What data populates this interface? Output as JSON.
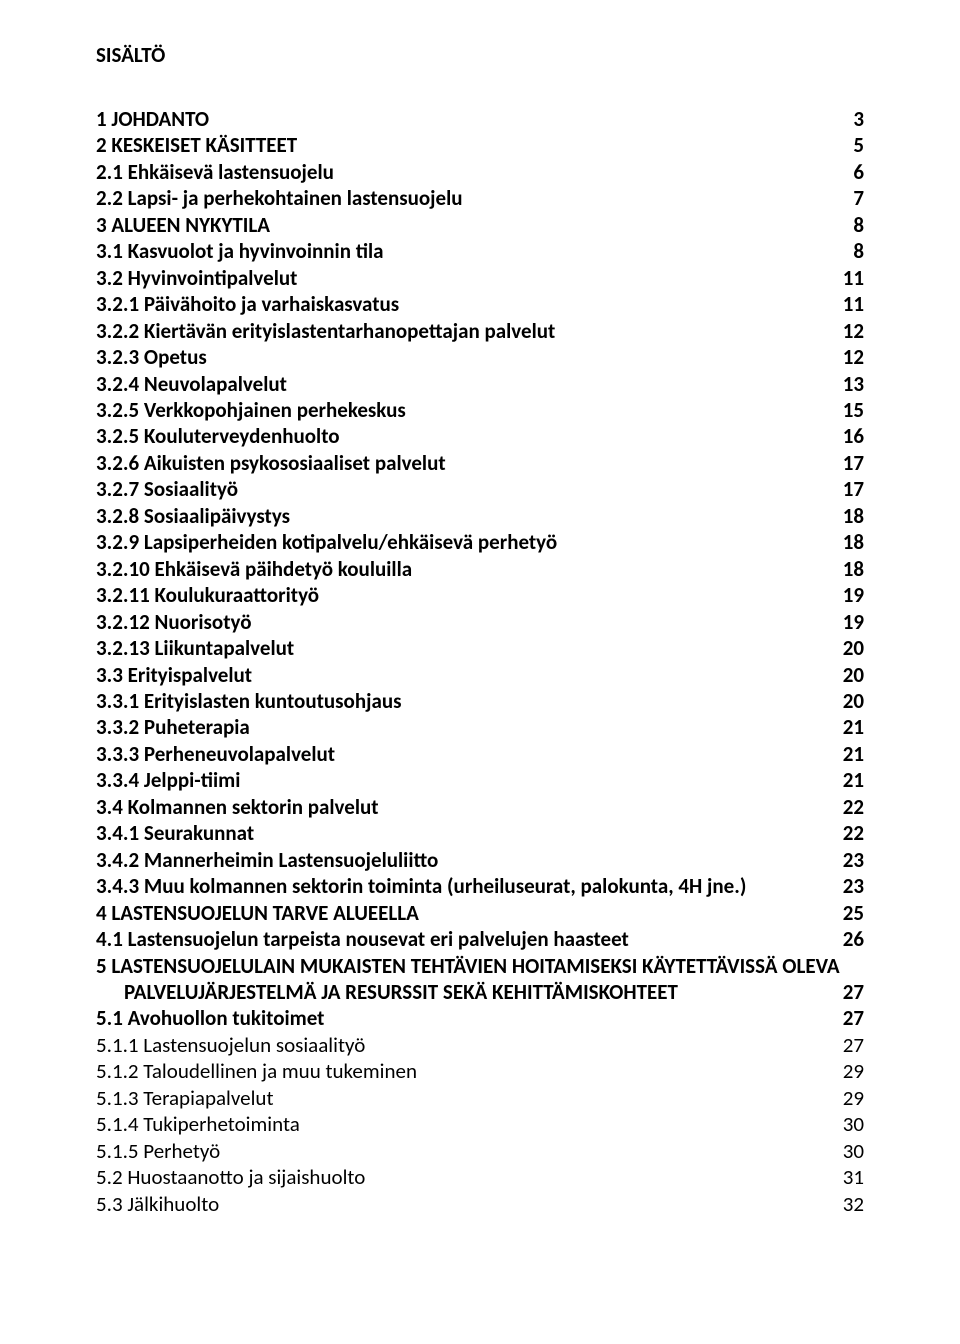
{
  "heading": "SISÄLTÖ",
  "toc": [
    {
      "bold": true,
      "indent": 0,
      "title": "1 JOHDANTO",
      "page": "3"
    },
    {
      "bold": true,
      "indent": 0,
      "title": "2 KESKEISET KÄSITTEET",
      "page": "5"
    },
    {
      "bold": true,
      "indent": 0,
      "title": "2.1 Ehkäisevä lastensuojelu",
      "page": "6"
    },
    {
      "bold": true,
      "indent": 0,
      "title": "2.2 Lapsi- ja perhekohtainen lastensuojelu",
      "page": "7"
    },
    {
      "bold": true,
      "indent": 0,
      "title": "3 ALUEEN NYKYTILA",
      "page": "8"
    },
    {
      "bold": true,
      "indent": 0,
      "title": "3.1 Kasvuolot ja hyvinvoinnin tila",
      "page": "8"
    },
    {
      "bold": true,
      "indent": 0,
      "title": "3.2 Hyvinvointipalvelut",
      "page": "11"
    },
    {
      "bold": true,
      "indent": 0,
      "title": "3.2.1 Päivähoito ja varhaiskasvatus",
      "page": "11"
    },
    {
      "bold": true,
      "indent": 0,
      "title": "3.2.2 Kiertävän erityislastentarhanopettajan palvelut",
      "page": "12"
    },
    {
      "bold": true,
      "indent": 0,
      "title": "3.2.3 Opetus",
      "page": "12"
    },
    {
      "bold": true,
      "indent": 0,
      "title": "3.2.4 Neuvolapalvelut",
      "page": "13"
    },
    {
      "bold": true,
      "indent": 0,
      "title": "3.2.5 Verkkopohjainen perhekeskus",
      "page": "15"
    },
    {
      "bold": true,
      "indent": 0,
      "title": "3.2.5 Kouluterveydenhuolto",
      "page": "16"
    },
    {
      "bold": true,
      "indent": 0,
      "title": "3.2.6 Aikuisten psykososiaaliset palvelut",
      "page": "17"
    },
    {
      "bold": true,
      "indent": 0,
      "title": "3.2.7 Sosiaalityö",
      "page": "17"
    },
    {
      "bold": true,
      "indent": 0,
      "title": "3.2.8 Sosiaalipäivystys",
      "page": "18"
    },
    {
      "bold": true,
      "indent": 0,
      "title": "3.2.9 Lapsiperheiden kotipalvelu/ehkäisevä perhetyö",
      "page": "18"
    },
    {
      "bold": true,
      "indent": 0,
      "title": "3.2.10 Ehkäisevä päihdetyö kouluilla",
      "page": "18"
    },
    {
      "bold": true,
      "indent": 0,
      "title": "3.2.11 Koulukuraattorityö",
      "page": "19"
    },
    {
      "bold": true,
      "indent": 0,
      "title": "3.2.12 Nuorisotyö",
      "page": "19"
    },
    {
      "bold": true,
      "indent": 0,
      "title": "3.2.13 Liikuntapalvelut",
      "page": "20"
    },
    {
      "bold": true,
      "indent": 0,
      "title": "3.3 Erityispalvelut",
      "page": "20"
    },
    {
      "bold": true,
      "indent": 0,
      "title": "3.3.1 Erityislasten kuntoutusohjaus",
      "page": "20"
    },
    {
      "bold": true,
      "indent": 0,
      "title": "3.3.2 Puheterapia",
      "page": "21"
    },
    {
      "bold": true,
      "indent": 0,
      "title": "3.3.3 Perheneuvolapalvelut",
      "page": "21"
    },
    {
      "bold": true,
      "indent": 0,
      "title": "3.3.4 Jelppi-tiimi",
      "page": "21"
    },
    {
      "bold": true,
      "indent": 0,
      "title": "3.4 Kolmannen sektorin palvelut",
      "page": "22"
    },
    {
      "bold": true,
      "indent": 0,
      "title": "3.4.1 Seurakunnat",
      "page": "22"
    },
    {
      "bold": true,
      "indent": 0,
      "title": "3.4.2 Mannerheimin Lastensuojeluliitto",
      "page": "23"
    },
    {
      "bold": true,
      "indent": 0,
      "title": "3.4.3 Muu kolmannen sektorin toiminta (urheiluseurat, palokunta, 4H jne.)",
      "page": "23"
    },
    {
      "bold": true,
      "indent": 0,
      "title": "4 LASTENSUOJELUN TARVE ALUEELLA",
      "page": "25"
    },
    {
      "bold": true,
      "indent": 0,
      "title": "4.1 Lastensuojelun tarpeista nousevat eri palvelujen haasteet",
      "page": "26"
    },
    {
      "bold": true,
      "indent": 0,
      "title": "5 LASTENSUOJELULAIN MUKAISTEN TEHTÄVIEN HOITAMISEKSI KÄYTETTÄVISSÄ OLEVA",
      "page": ""
    },
    {
      "bold": true,
      "indent": 1,
      "title": "PALVELUJÄRJESTELMÄ JA RESURSSIT SEKÄ KEHITTÄMISKOHTEET",
      "page": "27"
    },
    {
      "bold": true,
      "indent": 0,
      "title": "5.1 Avohuollon tukitoimet",
      "page": "27"
    },
    {
      "bold": false,
      "indent": 0,
      "title": "5.1.1 Lastensuojelun sosiaalityö",
      "page": "27"
    },
    {
      "bold": false,
      "indent": 0,
      "title": "5.1.2 Taloudellinen ja muu tukeminen",
      "page": "29"
    },
    {
      "bold": false,
      "indent": 0,
      "title": "5.1.3 Terapiapalvelut",
      "page": "29"
    },
    {
      "bold": false,
      "indent": 0,
      "title": "5.1.4 Tukiperhetoiminta",
      "page": "30"
    },
    {
      "bold": false,
      "indent": 0,
      "title": "5.1.5 Perhetyö",
      "page": "30"
    },
    {
      "bold": false,
      "indent": 0,
      "title": "5.2 Huostaanotto ja sijaishuolto",
      "page": "31"
    },
    {
      "bold": false,
      "indent": 0,
      "title": "5.3 Jälkihuolto",
      "page": "32"
    }
  ]
}
